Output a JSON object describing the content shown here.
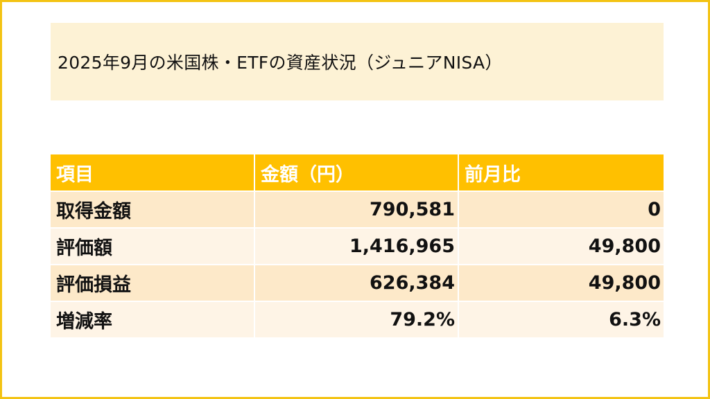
{
  "title": "2025年9月の米国株・ETFの資産状況（ジュニアNISA）",
  "colors": {
    "frame_border": "#f3c313",
    "title_background": "#fdf2d5",
    "header_background": "#ffc000",
    "row_odd_background": "#fde9c9",
    "row_even_background": "#fef4e6"
  },
  "table": {
    "headers": [
      "項目",
      "金額（円）",
      "前月比"
    ],
    "rows": [
      [
        "取得金額",
        "790,581",
        "0"
      ],
      [
        "評価額",
        "1,416,965",
        "49,800"
      ],
      [
        "評価損益",
        "626,384",
        "49,800"
      ],
      [
        "増減率",
        "79.2%",
        "6.3%"
      ]
    ]
  }
}
